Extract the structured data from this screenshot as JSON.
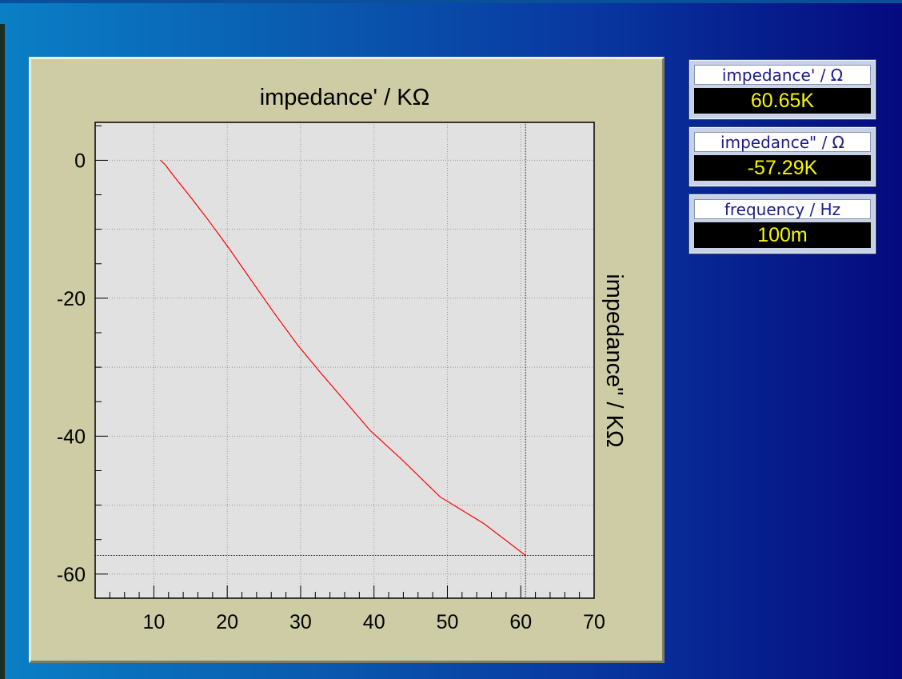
{
  "readouts": [
    {
      "label": "impedance' / Ω",
      "value": "60.65K"
    },
    {
      "label": "impedance\" / Ω",
      "value": "-57.29K"
    },
    {
      "label": "frequency / Hz",
      "value": "100m"
    }
  ],
  "colors": {
    "series": "#ff0000",
    "panel": "#cdcca4",
    "plot_bg": "#e1e1e1",
    "readout_value": "#f7f700"
  },
  "chart_data": {
    "type": "line",
    "title": "",
    "xlabel": "impedance' /  KΩ",
    "ylabel": "impedance\"  /  KΩ",
    "xlim": [
      2,
      70
    ],
    "ylim": [
      -63.5,
      5.5
    ],
    "x_ticks": [
      10,
      20,
      30,
      40,
      50,
      60,
      70
    ],
    "y_ticks": [
      0,
      -20,
      -40,
      -60
    ],
    "x_tick_labels": [
      "10",
      "20",
      "30",
      "40",
      "50",
      "60",
      "70"
    ],
    "y_tick_labels": [
      "0",
      "-20",
      "-40",
      "-60"
    ],
    "grid": true,
    "crosshair": {
      "x": 60.65,
      "y": -57.29
    },
    "series": [
      {
        "x": [
          10.9,
          11.2,
          11.6,
          12.0,
          13.1,
          14.9,
          17.3,
          20.4,
          23.4,
          26.5,
          29.6,
          32.8,
          36.2,
          39.5,
          43.7,
          49.0,
          55.0,
          60.65
        ],
        "y": [
          0.0,
          -0.3,
          -0.7,
          -1.3,
          -2.8,
          -5.2,
          -8.5,
          -13.0,
          -17.6,
          -22.3,
          -26.8,
          -30.9,
          -35.1,
          -39.2,
          -43.3,
          -48.8,
          -52.7,
          -57.29
        ]
      }
    ]
  }
}
